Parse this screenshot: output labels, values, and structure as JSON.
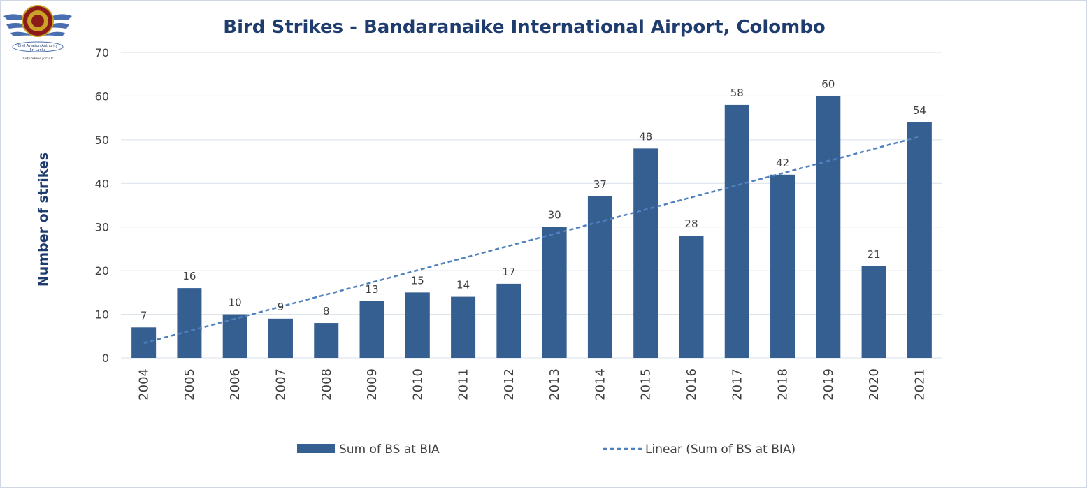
{
  "logo": {
    "name_line1": "Civil Aviation Authority",
    "name_line2": "Sri Lanka",
    "tagline": "Safe Skies for All"
  },
  "colors": {
    "bar": "#365f91",
    "trend": "#4f81bd",
    "title": "#1f3c6e",
    "grid": "#d9e1ea"
  },
  "chart_data": {
    "type": "bar",
    "title": "Bird Strikes - Bandaranaike International Airport, Colombo",
    "ylabel": "Number of strikes",
    "xlabel": "",
    "ylim": [
      0,
      70
    ],
    "yticks": [
      0,
      10,
      20,
      30,
      40,
      50,
      60,
      70
    ],
    "grid": true,
    "legend_position": "bottom",
    "categories": [
      "2004",
      "2005",
      "2006",
      "2007",
      "2008",
      "2009",
      "2010",
      "2011",
      "2012",
      "2013",
      "2014",
      "2015",
      "2016",
      "2017",
      "2018",
      "2019",
      "2020",
      "2021"
    ],
    "series": [
      {
        "name": "Sum of BS at BIA",
        "type": "bar",
        "values": [
          7,
          16,
          10,
          9,
          8,
          13,
          15,
          14,
          17,
          30,
          37,
          48,
          28,
          58,
          42,
          60,
          21,
          54
        ]
      },
      {
        "name": "Linear (Sum of BS at BIA)",
        "type": "trendline-linear",
        "start": 3.4,
        "end": 50.7
      }
    ]
  }
}
